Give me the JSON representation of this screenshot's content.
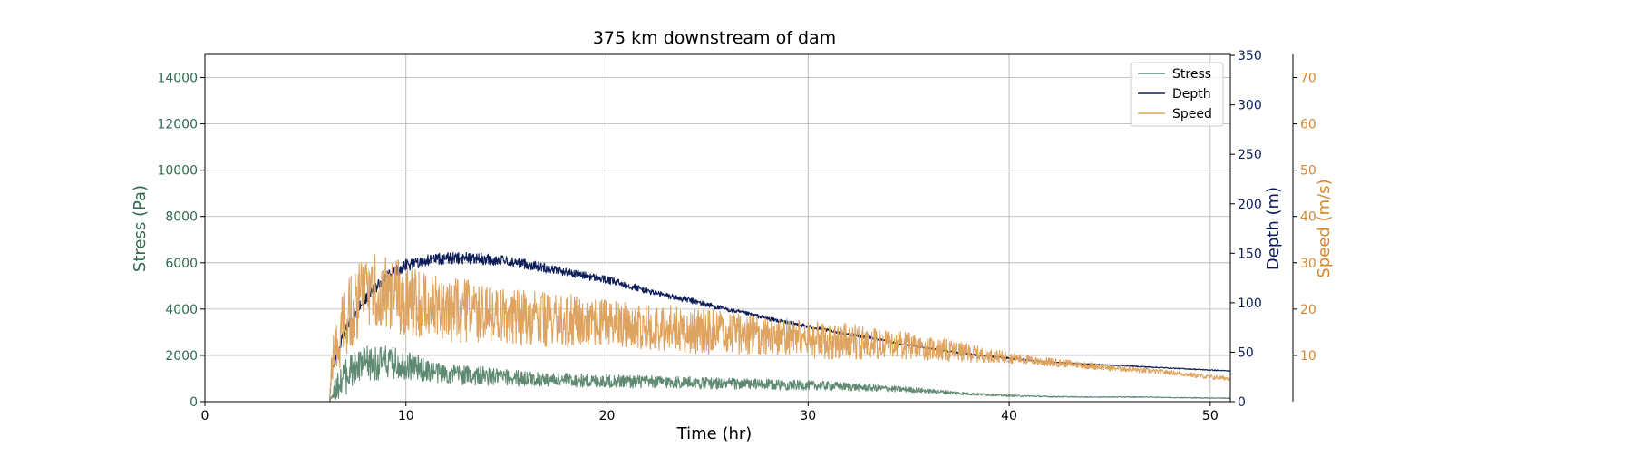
{
  "chart_data": {
    "type": "line",
    "title": "375 km downstream of dam",
    "xlabel": "Time (hr)",
    "xlim": [
      0,
      51
    ],
    "x_ticks": [
      0,
      10,
      20,
      30,
      40,
      50
    ],
    "grid": true,
    "legend_position": "top-right",
    "axes": {
      "left": {
        "label": "Stress (Pa)",
        "color": "#2f6b4f",
        "ylim": [
          0,
          15000
        ],
        "ticks": [
          0,
          2000,
          4000,
          6000,
          8000,
          10000,
          12000,
          14000
        ]
      },
      "right1": {
        "label": "Depth (m)",
        "color": "#0d1d5a",
        "ylim": [
          0,
          351
        ],
        "ticks": [
          0,
          50,
          100,
          150,
          200,
          250,
          300,
          350
        ]
      },
      "right2": {
        "label": "Speed (m/s)",
        "color": "#d4882e",
        "ylim": [
          0,
          75
        ],
        "ticks": [
          10,
          20,
          30,
          40,
          50,
          60,
          70
        ]
      }
    },
    "series": [
      {
        "name": "Stress",
        "axis": "left",
        "color": "#5f8a72",
        "x": [
          0,
          6.2,
          6.3,
          7,
          8,
          9,
          10,
          11,
          12,
          13,
          14,
          15,
          16,
          17,
          18,
          19,
          20,
          21,
          22,
          23,
          24,
          25,
          26,
          27,
          28,
          29,
          30,
          31,
          32,
          33,
          34,
          35,
          36,
          37,
          38,
          39,
          40,
          41,
          42,
          43,
          44,
          45,
          46,
          47,
          48,
          49,
          50,
          51
        ],
        "y": [
          0,
          0,
          300,
          1200,
          1600,
          1700,
          1600,
          1350,
          1200,
          1150,
          1100,
          1050,
          1000,
          950,
          950,
          900,
          900,
          880,
          860,
          850,
          830,
          800,
          780,
          760,
          740,
          720,
          700,
          680,
          650,
          600,
          560,
          520,
          460,
          400,
          340,
          300,
          260,
          240,
          220,
          210,
          200,
          200,
          200,
          200,
          180,
          170,
          160,
          150
        ],
        "amp": [
          0,
          0,
          300,
          900,
          800,
          700,
          650,
          500,
          450,
          450,
          400,
          350,
          350,
          300,
          300,
          300,
          300,
          300,
          280,
          280,
          260,
          250,
          250,
          240,
          230,
          220,
          200,
          200,
          180,
          160,
          140,
          120,
          100,
          80,
          60,
          50,
          40,
          30,
          30,
          20,
          20,
          20,
          20,
          20,
          20,
          20,
          20,
          20
        ]
      },
      {
        "name": "Depth",
        "axis": "right1",
        "color": "#0d1d5a",
        "x": [
          0,
          6.2,
          6.3,
          7,
          8,
          9,
          10,
          11,
          12,
          13,
          14,
          15,
          16,
          17,
          18,
          19,
          20,
          21,
          22,
          23,
          24,
          25,
          26,
          27,
          28,
          29,
          30,
          31,
          32,
          33,
          34,
          35,
          36,
          37,
          38,
          39,
          40,
          41,
          42,
          43,
          44,
          45,
          46,
          47,
          48,
          49,
          50,
          51
        ],
        "y": [
          0,
          0,
          30,
          75,
          105,
          125,
          138,
          143,
          145,
          145,
          144,
          142,
          139,
          135,
          131,
          127,
          123,
          118,
          112,
          107,
          103,
          98,
          93,
          89,
          84,
          80,
          76,
          72,
          68,
          65,
          61,
          57,
          54,
          51,
          48,
          46,
          44,
          42,
          40,
          39,
          38,
          37,
          36,
          35,
          34,
          33,
          32,
          31
        ],
        "amp": [
          0,
          0,
          4,
          5,
          6,
          6,
          6,
          6,
          6,
          6,
          6,
          5,
          5,
          5,
          4,
          4,
          4,
          4,
          3,
          3,
          3,
          3,
          2,
          2,
          2,
          2,
          2,
          1.5,
          1.5,
          1.5,
          1,
          1,
          1,
          1,
          1,
          1,
          1,
          0.5,
          0.5,
          0.5,
          0.5,
          0.5,
          0.5,
          0.5,
          0.5,
          0.5,
          0.5,
          0.5
        ]
      },
      {
        "name": "Speed",
        "axis": "right2",
        "color": "#dea35f",
        "x": [
          0,
          6.2,
          6.3,
          7,
          8,
          9,
          10,
          11,
          12,
          13,
          14,
          15,
          16,
          17,
          18,
          19,
          20,
          21,
          22,
          23,
          24,
          25,
          26,
          27,
          28,
          29,
          30,
          31,
          32,
          33,
          34,
          35,
          36,
          37,
          38,
          39,
          40,
          41,
          42,
          43,
          44,
          45,
          46,
          47,
          48,
          49,
          50,
          51
        ],
        "y": [
          0,
          0,
          8,
          18,
          24,
          24,
          22,
          21,
          20,
          19.5,
          19,
          18.5,
          18,
          17.5,
          17.5,
          17,
          17,
          16.5,
          16,
          16,
          15.5,
          15,
          15,
          14.5,
          14,
          14,
          13.5,
          13,
          13,
          12.5,
          12.5,
          12,
          11.5,
          11,
          10.5,
          10,
          9.5,
          9,
          8.5,
          8.2,
          7.8,
          7.3,
          7,
          6.6,
          6.3,
          5.8,
          5.3,
          5
        ],
        "amp": [
          0,
          0,
          5,
          8,
          8,
          8,
          8,
          7,
          7,
          7,
          6,
          6,
          6,
          6,
          6,
          5,
          5,
          5,
          5,
          5,
          5,
          5,
          4.5,
          4.5,
          4,
          4,
          4,
          4,
          4,
          3.5,
          3,
          3,
          2.5,
          2.5,
          2,
          1.5,
          1.2,
          1,
          1,
          0.8,
          0.8,
          0.6,
          0.6,
          0.6,
          0.5,
          0.5,
          0.5,
          0.5
        ]
      }
    ]
  }
}
